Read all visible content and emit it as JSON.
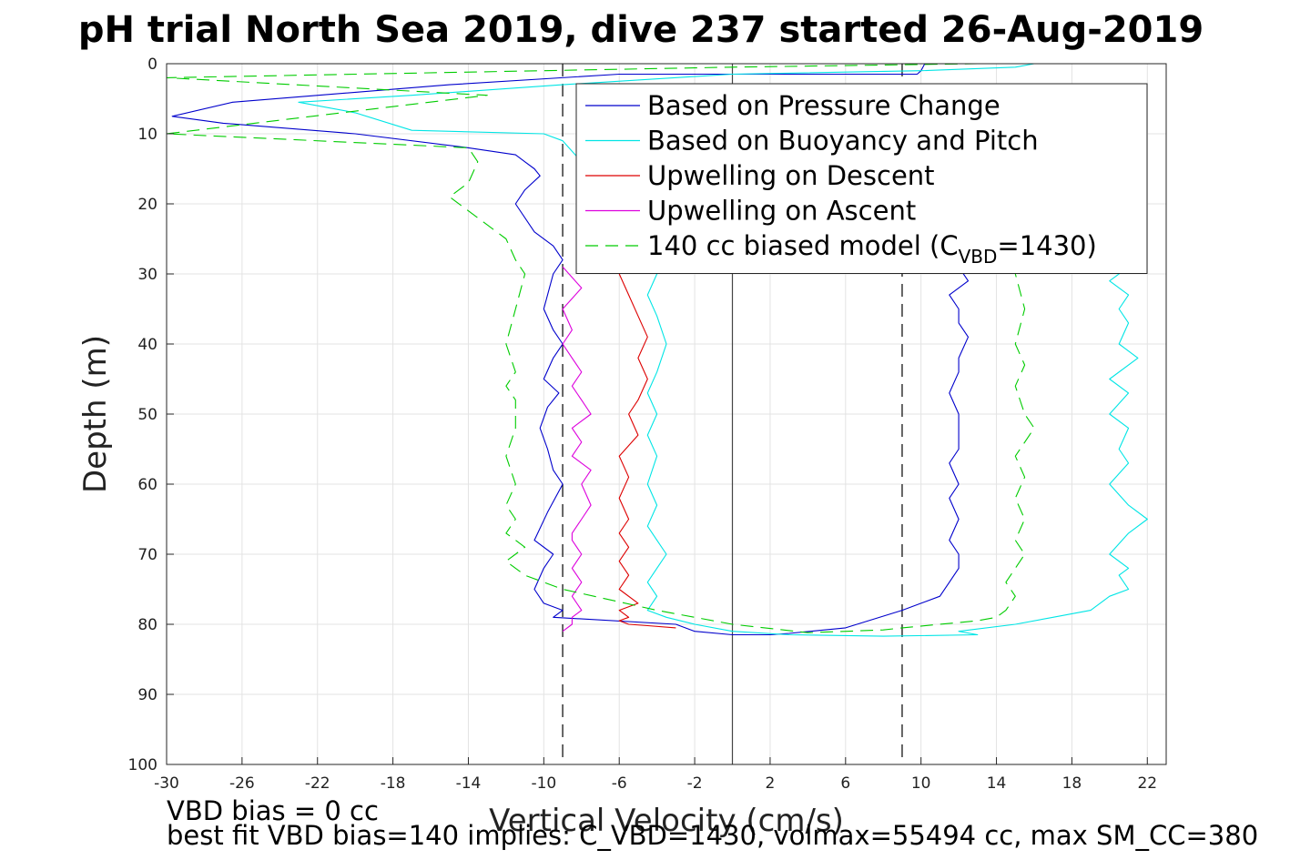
{
  "chart_data": {
    "type": "line",
    "title": "pH trial North Sea 2019, dive 237 started 26-Aug-2019",
    "xlabel": "Vertical Velocity (cm/s)",
    "ylabel": "Depth (m)",
    "xlim": [
      -30,
      23
    ],
    "ylim": [
      0,
      100
    ],
    "y_reversed": true,
    "grid": true,
    "x_ticks": [
      -30,
      -26,
      -22,
      -18,
      -14,
      -10,
      -6,
      -2,
      2,
      6,
      10,
      14,
      18,
      22
    ],
    "y_ticks": [
      0,
      10,
      20,
      30,
      40,
      50,
      60,
      70,
      80,
      90,
      100
    ],
    "legend_position": "top-right",
    "legend": [
      {
        "label": "Based on Pressure Change",
        "color": "#0000cc",
        "style": "solid"
      },
      {
        "label": "Based on Buoyancy and Pitch",
        "color": "#00e5e5",
        "style": "solid"
      },
      {
        "label": "Upwelling on Descent",
        "color": "#dd0000",
        "style": "solid"
      },
      {
        "label": "Upwelling on Ascent",
        "color": "#dd00dd",
        "style": "solid"
      },
      {
        "label_main": "140 cc biased model (C",
        "label_sub": "VBD",
        "label_tail": "=1430)",
        "color": "#00cc00",
        "style": "dashed"
      }
    ],
    "reference_lines": [
      {
        "x": 0,
        "style": "solid",
        "color": "#444444"
      },
      {
        "x": -9,
        "style": "dashed",
        "color": "#000000"
      },
      {
        "x": 9,
        "style": "dashed",
        "color": "#000000"
      }
    ],
    "series": [
      {
        "name": "Based on Pressure Change",
        "color": "#0000cc",
        "x": [
          10.2,
          10,
          9.8,
          -6,
          -15,
          -26.5,
          -29.7,
          -27,
          -20,
          -14,
          -11.5,
          -11,
          -10.5,
          -10.2,
          -11,
          -11.5,
          -10.5,
          -9.5,
          -9,
          -9.5,
          -10,
          -9.5,
          -9,
          -9.5,
          -10,
          -9.2,
          -9.8,
          -10.2,
          -9.8,
          -9.5,
          -9,
          -9.8,
          -10.5,
          -9.5,
          -10,
          -10.5,
          -10,
          -9,
          -9.5,
          -3,
          -2,
          0,
          2,
          3,
          6,
          9,
          10,
          11,
          11.5,
          12,
          12,
          11.5,
          12,
          11.5,
          12,
          11.5,
          12,
          12,
          11.5,
          12,
          12,
          12.5,
          12,
          12,
          11.5,
          12.5,
          12,
          11.5
        ],
        "y": [
          0,
          1,
          1.5,
          1.5,
          3,
          5.5,
          7.5,
          8.5,
          10,
          12,
          13,
          14,
          15,
          16,
          18,
          20,
          24,
          26,
          28,
          30,
          35,
          38,
          40,
          42,
          45,
          47,
          49,
          52,
          55,
          58,
          60,
          64,
          68,
          70,
          72,
          75,
          77,
          78,
          79,
          80,
          81,
          81.5,
          81.5,
          81.3,
          80.5,
          78,
          77,
          76,
          74,
          72,
          70,
          68,
          65,
          62,
          60,
          57,
          55,
          50,
          47,
          44,
          42,
          39,
          37,
          35,
          33,
          31,
          29,
          27
        ]
      },
      {
        "name": "Based on Buoyancy and Pitch",
        "color": "#00e5e5",
        "x": [
          16,
          15,
          10,
          0,
          -9,
          -17,
          -23,
          -20,
          -17,
          -10,
          -9,
          -8,
          -7,
          -5,
          -4.5,
          -4,
          -4.5,
          -4,
          -3.5,
          -4,
          -4.5,
          -4,
          -4.5,
          -4,
          -4.5,
          -4,
          -4.5,
          -4,
          -3.5,
          -4,
          -4.5,
          -4,
          -4.5,
          -3.5,
          -2,
          0,
          3,
          8,
          13,
          12,
          15,
          17,
          19,
          20,
          21,
          20.5,
          21,
          20,
          21,
          22,
          21,
          20,
          21,
          20.5,
          21,
          20,
          21,
          20,
          21.5,
          20.5,
          21,
          20.5,
          21,
          20,
          21
        ],
        "y": [
          0,
          0.5,
          1,
          1.5,
          3,
          4.5,
          5.5,
          7,
          9.5,
          10,
          11,
          14,
          18,
          22,
          26,
          30,
          33,
          36,
          40,
          44,
          47,
          50,
          53,
          56,
          60,
          63,
          66,
          68,
          70,
          72,
          74,
          76,
          78,
          79,
          80,
          81,
          81.5,
          81.7,
          81.5,
          81,
          80,
          79,
          78,
          76,
          75,
          73,
          72,
          70,
          67,
          65,
          63,
          60,
          57,
          55,
          52,
          50,
          47,
          45,
          42,
          40,
          37,
          35,
          33,
          31,
          29
        ]
      },
      {
        "name": "Upwelling on Descent",
        "color": "#dd0000",
        "x": [
          -6,
          -5.5,
          -5,
          -4.5,
          -5,
          -4.5,
          -5,
          -5.5,
          -5,
          -6,
          -5.5,
          -6,
          -5.5,
          -6,
          -5.5,
          -6,
          -5.5,
          -6,
          -5,
          -6,
          -5.5,
          -6,
          -5.5,
          -4.5,
          -3
        ],
        "y": [
          30,
          33,
          36,
          39,
          42,
          45,
          48,
          50,
          53,
          56,
          59,
          62,
          65,
          67,
          69,
          71,
          73,
          75,
          77,
          78,
          79,
          79.5,
          80,
          80.2,
          80.5
        ]
      },
      {
        "name": "Upwelling on Ascent",
        "color": "#dd00dd",
        "x": [
          -9,
          -8.5,
          -8.5,
          -8,
          -8.5,
          -8,
          -8.5,
          -8,
          -8.5,
          -8.5,
          -8,
          -7.5,
          -8,
          -7.5,
          -8.5,
          -8,
          -8.5,
          -7.5,
          -8,
          -8.5,
          -8,
          -8.5,
          -9,
          -8.5,
          -9,
          -8,
          -9
        ],
        "y": [
          81,
          80,
          79,
          78,
          76,
          74,
          72,
          70,
          68,
          67,
          65,
          63,
          60,
          58,
          56,
          54,
          52,
          50,
          48,
          46,
          44,
          42,
          40,
          38,
          35,
          32,
          29
        ]
      },
      {
        "name": "140 cc biased model (CVBD=1430)",
        "color": "#00cc00",
        "dashed": true,
        "x": [
          13,
          0,
          -30,
          -13,
          -30,
          -14,
          -13.5,
          -14,
          -15,
          -14,
          -13,
          -12,
          -11.5,
          -11,
          -11.5,
          -12,
          -11.5,
          -12,
          -11.5,
          -11.5,
          -12,
          -11.5,
          -12,
          -11.5,
          -12,
          -11,
          -12,
          -11,
          -9,
          -4,
          0,
          4,
          8,
          9,
          13,
          14,
          14.5,
          15,
          14.5,
          15,
          15.5,
          15,
          15.5,
          15,
          15.5,
          15,
          16,
          15.5,
          15,
          15.5,
          15,
          15.5,
          15
        ],
        "y": [
          0,
          0.5,
          2,
          4.5,
          10,
          12,
          14,
          17,
          19,
          21,
          23,
          25,
          28,
          30,
          35,
          40,
          44,
          46,
          48,
          52,
          56,
          60,
          63,
          65,
          67,
          69,
          71,
          73,
          75,
          78,
          80,
          81.2,
          80.8,
          80.5,
          79.5,
          79,
          78,
          76,
          74,
          72,
          70,
          68,
          65,
          62,
          59,
          56,
          52,
          50,
          46,
          43,
          40,
          35,
          30
        ]
      }
    ]
  },
  "footer": {
    "line1": "VBD bias = 0 cc",
    "line2": "best fit VBD bias=140 implies: C_VBD=1430, volmax=55494 cc, max SM_CC=380"
  }
}
